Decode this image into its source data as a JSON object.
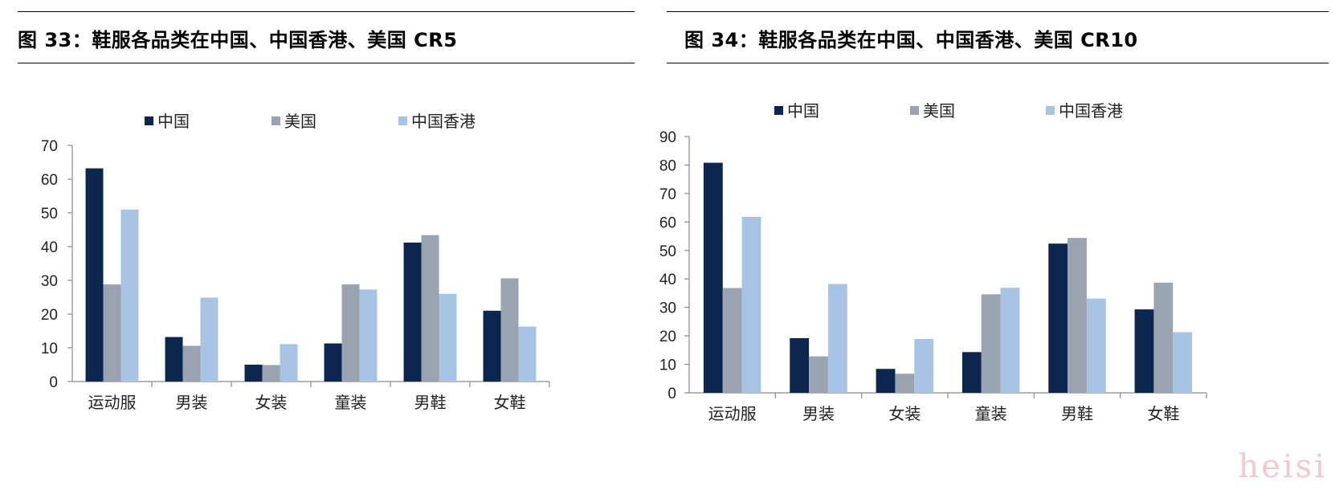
{
  "figures": [
    {
      "title": "图 33：鞋服各品类在中国、中国香港、美国 CR5"
    },
    {
      "title": "图 34：鞋服各品类在中国、中国香港、美国 CR10"
    }
  ],
  "watermark": "heisi",
  "colors": {
    "china": "#0c2650",
    "usa": "#9aa4b1",
    "hongkong": "#a8c4e4"
  },
  "chart_data": [
    {
      "type": "bar",
      "title": "图 33：鞋服各品类在中国、中国香港、美国 CR5",
      "categories": [
        "运动服",
        "男装",
        "女装",
        "童装",
        "男鞋",
        "女鞋"
      ],
      "series": [
        {
          "name": "中国",
          "values": [
            63.2,
            13.2,
            5.0,
            11.3,
            41.2,
            21.0
          ]
        },
        {
          "name": "美国",
          "values": [
            28.8,
            10.6,
            4.9,
            28.8,
            43.4,
            30.6
          ]
        },
        {
          "name": "中国香港",
          "values": [
            51.0,
            24.9,
            11.1,
            27.3,
            26.0,
            16.3
          ]
        }
      ],
      "yticks": [
        0,
        10,
        20,
        30,
        40,
        50,
        60,
        70
      ],
      "ylim": [
        0,
        70
      ],
      "legend_position": "top",
      "grid": false
    },
    {
      "type": "bar",
      "title": "图 34：鞋服各品类在中国、中国香港、美国 CR10",
      "categories": [
        "运动服",
        "男装",
        "女装",
        "童装",
        "男鞋",
        "女鞋"
      ],
      "series": [
        {
          "name": "中国",
          "values": [
            80.8,
            19.2,
            8.4,
            14.3,
            52.4,
            29.3
          ]
        },
        {
          "name": "美国",
          "values": [
            36.8,
            12.8,
            6.7,
            34.6,
            54.4,
            38.7
          ]
        },
        {
          "name": "中国香港",
          "values": [
            61.8,
            38.2,
            18.9,
            36.9,
            33.1,
            21.3
          ]
        }
      ],
      "yticks": [
        0,
        10,
        20,
        30,
        40,
        50,
        60,
        70,
        80,
        90
      ],
      "ylim": [
        0,
        90
      ],
      "legend_position": "top",
      "grid": false
    }
  ]
}
